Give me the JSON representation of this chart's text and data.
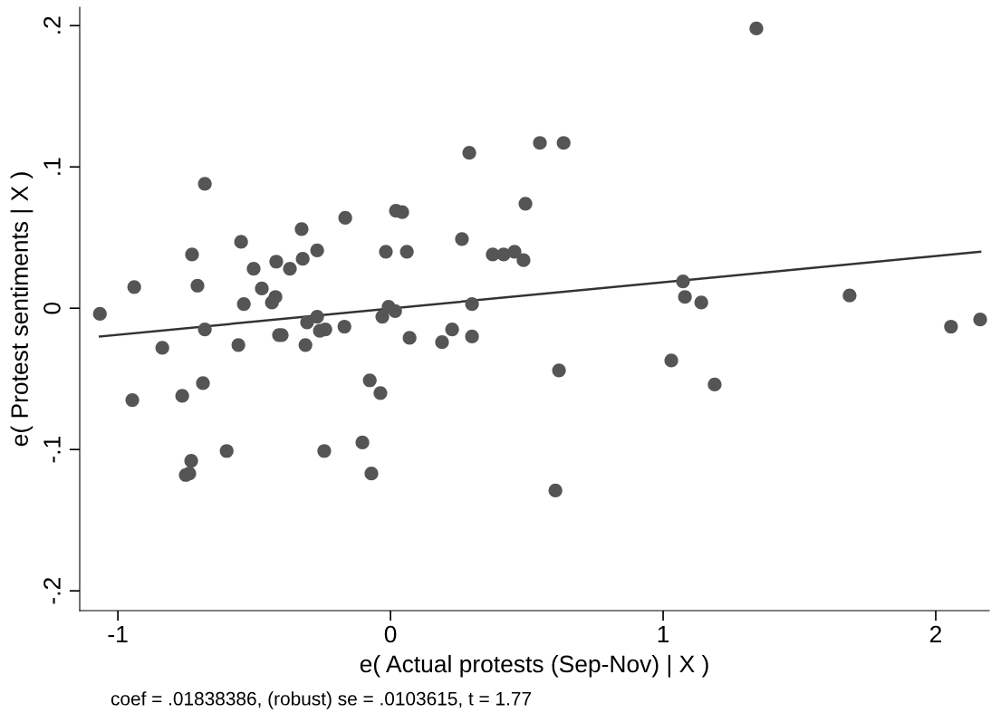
{
  "chart_data": {
    "type": "scatter",
    "xlabel": "e( Actual protests (Sep-Nov) | X )",
    "ylabel": "e( Protest sentiments | X )",
    "annotations": [
      "coef = .01838386, (robust) se = .0103615, t = 1.77"
    ],
    "xlim": [
      -1.14,
      2.196
    ],
    "ylim": [
      -0.214,
      0.213
    ],
    "xticks": [
      {
        "value": -1,
        "label": "-1"
      },
      0,
      1,
      2
    ],
    "yticks": [
      {
        "value": -0.2,
        "label": "-.2"
      },
      {
        "value": -0.1,
        "label": "-.1"
      },
      0,
      {
        "value": 0.1,
        "label": ".1"
      },
      {
        "value": 0.2,
        "label": ".2"
      }
    ],
    "grid": false,
    "legend": false,
    "marker": "circle",
    "series": [
      {
        "color": "#555555",
        "x": [
          -1.066,
          -0.94,
          -0.947,
          -0.837,
          -0.764,
          -0.751,
          -0.738,
          -0.731,
          -0.728,
          -0.708,
          -0.688,
          -0.681,
          -0.681,
          -0.601,
          -0.558,
          -0.548,
          -0.538,
          -0.502,
          -0.472,
          -0.435,
          -0.422,
          -0.419,
          -0.409,
          -0.399,
          -0.369,
          -0.326,
          -0.322,
          -0.312,
          -0.306,
          -0.269,
          -0.269,
          -0.259,
          -0.243,
          -0.239,
          -0.166,
          -0.169,
          -0.103,
          -0.076,
          -0.07,
          -0.037,
          -0.03,
          -0.017,
          -0.007,
          0.017,
          0.02,
          0.043,
          0.06,
          0.07,
          0.189,
          0.226,
          0.262,
          0.289,
          0.299,
          0.299,
          0.375,
          0.415,
          0.455,
          0.488,
          0.495,
          0.548,
          0.605,
          0.618,
          0.635,
          1.03,
          1.073,
          1.08,
          1.14,
          1.189,
          1.342,
          1.684,
          2.056,
          2.163
        ],
        "values": [
          -0.004,
          0.015,
          -0.065,
          -0.028,
          -0.062,
          -0.118,
          -0.117,
          -0.108,
          0.038,
          0.016,
          -0.053,
          -0.015,
          0.088,
          -0.101,
          -0.026,
          0.047,
          0.003,
          0.028,
          0.014,
          0.004,
          0.008,
          0.033,
          -0.019,
          -0.019,
          0.028,
          0.056,
          0.035,
          -0.026,
          -0.01,
          0.041,
          -0.006,
          -0.016,
          -0.101,
          -0.015,
          0.064,
          -0.013,
          -0.095,
          -0.051,
          -0.117,
          -0.06,
          -0.006,
          0.04,
          0.001,
          -0.002,
          0.069,
          0.068,
          0.04,
          -0.021,
          -0.024,
          -0.015,
          0.049,
          0.11,
          0.003,
          -0.02,
          0.038,
          0.038,
          0.04,
          0.034,
          0.074,
          0.117,
          -0.129,
          -0.044,
          0.117,
          -0.037,
          0.019,
          0.008,
          0.004,
          -0.054,
          0.198,
          0.009,
          -0.013,
          -0.008
        ]
      },
      {
        "type": "line",
        "marker": "none",
        "color": "#333333",
        "x": [
          -1.066,
          2.163
        ],
        "values": [
          -0.02,
          0.04
        ]
      }
    ]
  }
}
